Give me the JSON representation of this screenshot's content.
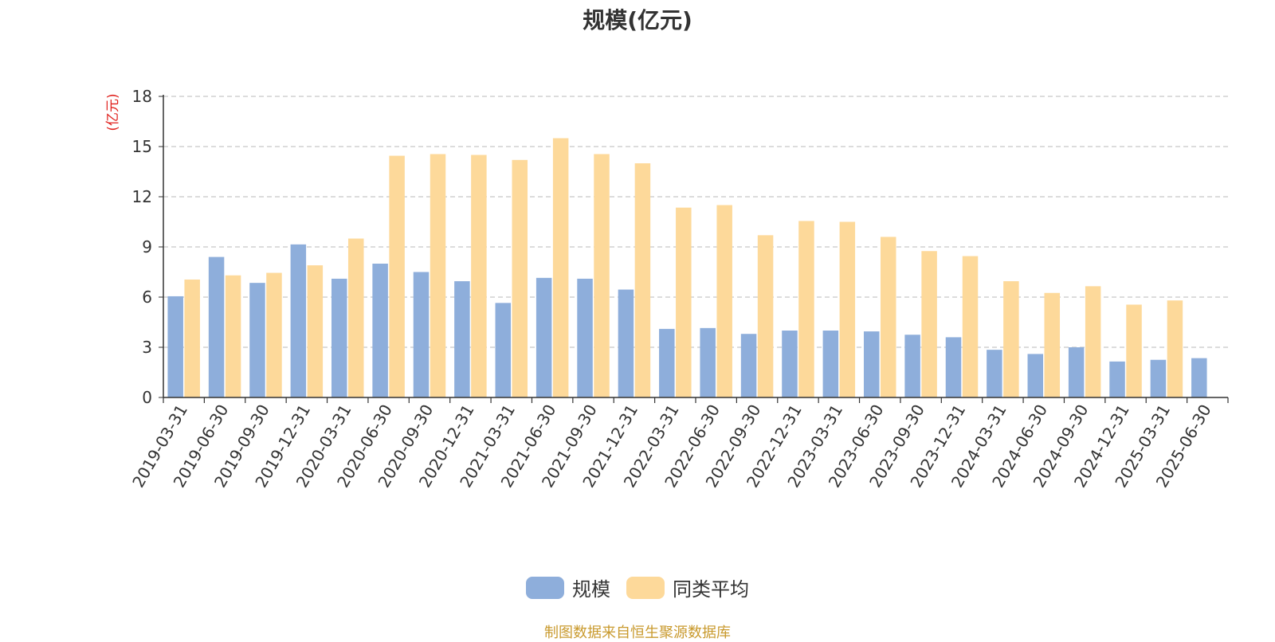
{
  "chart_data": {
    "type": "bar",
    "title": "规模(亿元)",
    "ylabel": "(亿元)",
    "ylim": [
      0,
      18
    ],
    "yticks": [
      0,
      3,
      6,
      9,
      12,
      15,
      18
    ],
    "grid": true,
    "legend_position": "bottom-center",
    "categories": [
      "2019-03-31",
      "2019-06-30",
      "2019-09-30",
      "2019-12-31",
      "2020-03-31",
      "2020-06-30",
      "2020-09-30",
      "2020-12-31",
      "2021-03-31",
      "2021-06-30",
      "2021-09-30",
      "2021-12-31",
      "2022-03-31",
      "2022-06-30",
      "2022-09-30",
      "2022-12-31",
      "2023-03-31",
      "2023-06-30",
      "2023-09-30",
      "2023-12-31",
      "2024-03-31",
      "2024-06-30",
      "2024-09-30",
      "2024-12-31",
      "2025-03-31",
      "2025-06-30"
    ],
    "series": [
      {
        "name": "规模",
        "color": "#8eaedb",
        "values": [
          6.05,
          8.4,
          6.85,
          9.15,
          7.1,
          8.0,
          7.5,
          6.95,
          5.65,
          7.15,
          7.1,
          6.45,
          4.1,
          4.15,
          3.8,
          4.0,
          4.0,
          3.95,
          3.75,
          3.6,
          2.85,
          2.6,
          3.0,
          2.15,
          2.25,
          2.35
        ]
      },
      {
        "name": "同类平均",
        "color": "#fdd99a",
        "values": [
          7.05,
          7.3,
          7.45,
          7.9,
          9.5,
          14.45,
          14.55,
          14.5,
          14.2,
          15.5,
          14.55,
          14.0,
          11.35,
          11.5,
          9.7,
          10.55,
          10.5,
          9.6,
          8.75,
          8.45,
          6.95,
          6.25,
          6.65,
          5.55,
          5.8,
          null
        ]
      }
    ]
  },
  "legend": {
    "items": [
      {
        "label": "规模",
        "color": "#8eaedb"
      },
      {
        "label": "同类平均",
        "color": "#fdd99a"
      }
    ]
  },
  "footer": {
    "source": "制图数据来自恒生聚源数据库"
  }
}
